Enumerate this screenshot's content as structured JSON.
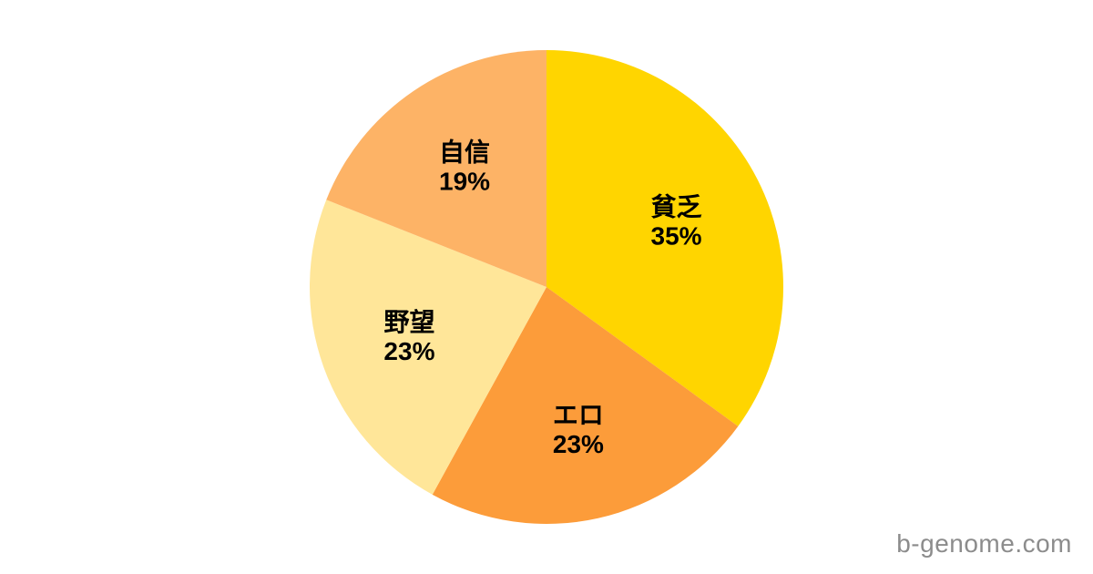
{
  "page": {
    "background": "#ffffff"
  },
  "chart_data": {
    "type": "pie",
    "title": "",
    "start_angle": "top",
    "direction": "clockwise",
    "legend": "none",
    "label_color": "#000000",
    "slices": [
      {
        "label": "貧乏",
        "value": 35,
        "percent_text": "35%",
        "color": "#FFD500"
      },
      {
        "label": "エロ",
        "value": 23,
        "percent_text": "23%",
        "color": "#FC9C3A"
      },
      {
        "label": "野望",
        "value": 23,
        "percent_text": "23%",
        "color": "#FFE699"
      },
      {
        "label": "自信",
        "value": 19,
        "percent_text": "19%",
        "color": "#FDB366"
      }
    ]
  },
  "watermark": {
    "text": "b-genome.com",
    "color": "#8C8C8C"
  }
}
